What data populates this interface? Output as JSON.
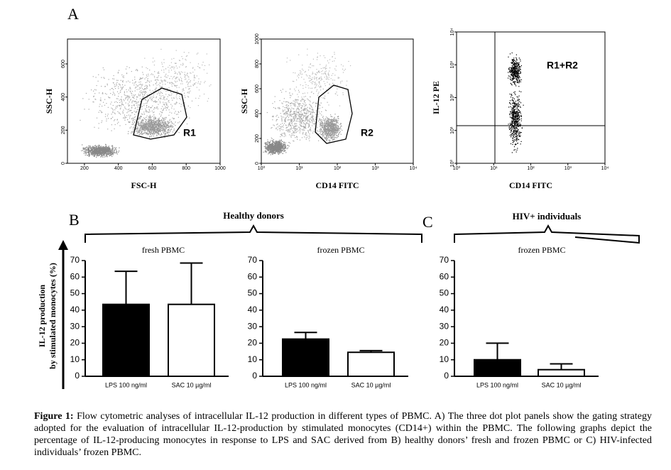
{
  "figure": {
    "panel_labels": [
      "A",
      "B",
      "C"
    ],
    "caption_label": "Figure 1:",
    "caption": "Flow cytometric analyses of intracellular IL-12 production in different types of PBMC.  A) The three dot plot panels show the gating strategy adopted for the evaluation of intracellular IL-12-production by stimulated monocytes (CD14+) within the PBMC. The following graphs depict the percentage of IL-12-producing monocytes in response to LPS and SAC derived from B) healthy donors’ fresh and frozen PBMC or C) HIV-infected individuals’ frozen PBMC.",
    "groups": [
      "Healthy donors",
      "HIV+ individuals"
    ],
    "bar_y_label": [
      "IL-12 production",
      "by stimulated monocytes (%)"
    ]
  },
  "dot_plots": [
    {
      "x_label": "FSC-H",
      "y_label": "SSC-H",
      "gate": "R1",
      "xscale": "linear",
      "yscale": "linear",
      "xlim": [
        100,
        1000
      ],
      "xticks": [
        200,
        400,
        600,
        800,
        1000
      ],
      "ylim": [
        0,
        750
      ],
      "yticks": [
        0,
        200,
        400,
        600
      ]
    },
    {
      "x_label": "CD14 FITC",
      "y_label": "SSC-H",
      "gate": "R2",
      "xscale": "log",
      "yscale": "linear",
      "xlim": [
        1,
        10000
      ],
      "xticks": [
        {
          "value": 1,
          "label": "10⁰"
        },
        {
          "value": 10,
          "label": "10¹"
        },
        {
          "value": 100,
          "label": "10²"
        },
        {
          "value": 1000,
          "label": "10³"
        },
        {
          "value": 10000,
          "label": "10⁴"
        }
      ],
      "ylim": [
        0,
        1000
      ],
      "yticks": [
        0,
        200,
        400,
        600,
        800,
        1000
      ]
    },
    {
      "x_label": "CD14 FITC",
      "y_label": "IL-12 PE",
      "gate": "R1+R2",
      "xscale": "log",
      "yscale": "log",
      "xlim": [
        1,
        10000
      ],
      "xticks": [
        {
          "value": 1,
          "label": "10⁰"
        },
        {
          "value": 10,
          "label": "10¹"
        },
        {
          "value": 100,
          "label": "10²"
        },
        {
          "value": 1000,
          "label": "10³"
        },
        {
          "value": 10000,
          "label": "10⁴"
        }
      ],
      "ylim": [
        1,
        10000
      ],
      "yticks": [
        {
          "value": 1,
          "label": "10⁰"
        },
        {
          "value": 10,
          "label": "10¹"
        },
        {
          "value": 100,
          "label": "10²"
        },
        {
          "value": 1000,
          "label": "10³"
        },
        {
          "value": 10000,
          "label": "10⁴"
        }
      ]
    }
  ],
  "chart_data": [
    {
      "type": "bar",
      "subtitle": "fresh PBMC",
      "categories": [
        "LPS 100 ng/ml",
        "SAC 10 µg/ml"
      ],
      "values": [
        43.5,
        43.5
      ],
      "errors": [
        20,
        25
      ],
      "colors": [
        "#000000",
        "#ffffff"
      ],
      "ylim": [
        0,
        70
      ],
      "yticks": [
        0,
        10,
        20,
        30,
        40,
        50,
        60,
        70
      ]
    },
    {
      "type": "bar",
      "subtitle": "frozen PBMC",
      "categories": [
        "LPS 100 ng/ml",
        "SAC 10 µg/ml"
      ],
      "values": [
        22.5,
        14.5
      ],
      "errors": [
        4,
        1
      ],
      "colors": [
        "#000000",
        "#ffffff"
      ],
      "ylim": [
        0,
        70
      ],
      "yticks": [
        0,
        10,
        20,
        30,
        40,
        50,
        60,
        70
      ]
    },
    {
      "type": "bar",
      "subtitle": "frozen PBMC",
      "categories": [
        "LPS 100 ng/ml",
        "SAC 10 µg/ml"
      ],
      "values": [
        10,
        4
      ],
      "errors": [
        10,
        3.5
      ],
      "colors": [
        "#000000",
        "#ffffff"
      ],
      "ylim": [
        0,
        70
      ],
      "yticks": [
        0,
        10,
        20,
        30,
        40,
        50,
        60,
        70
      ]
    }
  ]
}
